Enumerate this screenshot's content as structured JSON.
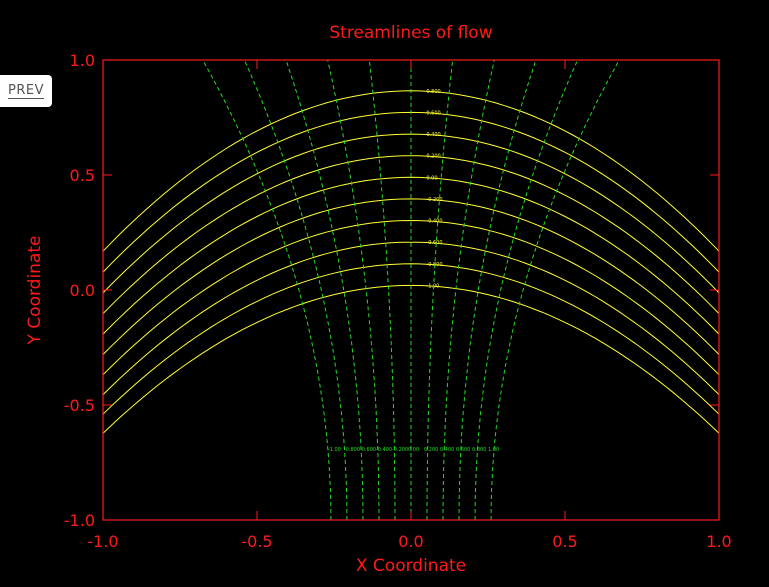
{
  "nav": {
    "prev_label": "PREV"
  },
  "colors": {
    "frame": "#ff1a1a",
    "psi": "#ffff33",
    "phi": "#22dd22",
    "background": "#000000"
  },
  "chart_data": {
    "type": "line",
    "subtype": "contour",
    "title": "Streamlines of flow",
    "xlabel": "X Coordinate",
    "ylabel": "Y Coordinate",
    "xlim": [
      -1.0,
      1.0
    ],
    "ylim": [
      -1.0,
      1.0
    ],
    "xticks": [
      "-1.0",
      "-0.5",
      "0.0",
      "0.5",
      "1.0"
    ],
    "yticks": [
      "-1.0",
      "-0.5",
      "0.0",
      "0.5",
      "1.0"
    ],
    "grid": false,
    "series": [
      {
        "style": "solid",
        "color": "yellow",
        "levels": [
          -1.0,
          -0.8,
          -0.6,
          -0.4,
          -0.2,
          0.0,
          0.2,
          0.4,
          0.6,
          0.8
        ],
        "level_labels": [
          "-1.00",
          "-0.800",
          "-0.600",
          "-0.400",
          "-0.200",
          "0.00",
          "0.200",
          "0.400",
          "0.600",
          "0.800"
        ]
      },
      {
        "style": "dashed",
        "color": "green",
        "levels": [
          -1.0,
          -0.8,
          -0.6,
          -0.4,
          -0.2,
          0.0,
          0.2,
          0.4,
          0.6,
          0.8,
          1.0
        ],
        "level_labels": [
          "-1.00",
          "-0.800",
          "-0.600",
          "-0.400",
          "-0.200",
          "0.00",
          "0.200",
          "0.400",
          "0.600",
          "0.800",
          "1.00"
        ]
      }
    ]
  }
}
